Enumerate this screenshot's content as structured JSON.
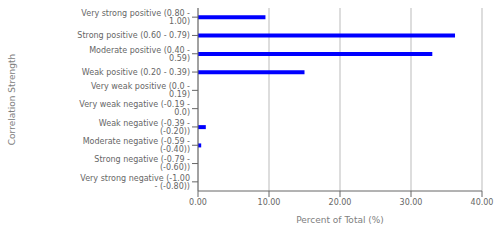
{
  "chart_data": {
    "type": "bar",
    "orientation": "horizontal",
    "categories": [
      "Very strong positive (0.80 - 1.00)",
      "Strong positive (0.60 - 0.79)",
      "Moderate positive (0.40 - 0.59)",
      "Weak positive (0.20 - 0.39)",
      "Very weak positive (0.0 - 0.19)",
      "Very weak negative (-0.19 - 0.0)",
      "Weak negative (-0.39 - (-0.20))",
      "Moderate negative (-0.59 - (-0.40))",
      "Strong negative (-0.79 - (-0.60))",
      "Very strong negative (-1.00 - (-0.80))"
    ],
    "values": [
      9.5,
      36.2,
      33.0,
      15.0,
      0.0,
      0.0,
      1.1,
      0.45,
      0.0,
      0.0
    ],
    "color": "#0000FF",
    "xlabel": "Percent of Total (%)",
    "ylabel": "Correlation Strength",
    "xlim": [
      0,
      40
    ],
    "xticks": [
      {
        "value": 0,
        "label": "0.00"
      },
      {
        "value": 10,
        "label": "10.00"
      },
      {
        "value": 20,
        "label": "20.00"
      },
      {
        "value": 30,
        "label": "30.00"
      },
      {
        "value": 40,
        "label": "40.00"
      }
    ],
    "grid": true
  }
}
